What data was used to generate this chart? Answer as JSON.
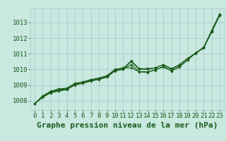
{
  "title": "Graphe pression niveau de la mer (hPa)",
  "background_color": "#c8e8e0",
  "grid_color": "#b0d0cc",
  "line_color": "#1a5c1a",
  "marker_color": "#1a5c1a",
  "xlim": [
    -0.5,
    23.5
  ],
  "ylim": [
    1007.4,
    1013.9
  ],
  "yticks": [
    1008,
    1009,
    1010,
    1011,
    1012,
    1013
  ],
  "xticks": [
    0,
    1,
    2,
    3,
    4,
    5,
    6,
    7,
    8,
    9,
    10,
    11,
    12,
    13,
    14,
    15,
    16,
    17,
    18,
    19,
    20,
    21,
    22,
    23
  ],
  "series": [
    [
      1007.8,
      1008.25,
      1008.55,
      1008.65,
      1008.75,
      1009.05,
      1009.15,
      1009.3,
      1009.4,
      1009.55,
      1009.95,
      1010.05,
      1010.55,
      1010.05,
      1010.05,
      1010.1,
      1010.3,
      1010.05,
      1010.3,
      1010.7,
      1011.05,
      1011.4,
      1012.45,
      1013.5
    ],
    [
      1007.8,
      1008.3,
      1008.6,
      1008.75,
      1008.8,
      1009.1,
      1009.2,
      1009.35,
      1009.45,
      1009.6,
      1010.0,
      1010.1,
      1010.1,
      1009.85,
      1009.8,
      1010.0,
      1010.15,
      1009.9,
      1010.15,
      1010.6,
      1011.05,
      1011.4,
      1012.5,
      1013.55
    ],
    [
      1007.8,
      1008.2,
      1008.5,
      1008.6,
      1008.7,
      1009.0,
      1009.1,
      1009.25,
      1009.35,
      1009.5,
      1009.9,
      1010.0,
      1010.5,
      1010.0,
      1010.0,
      1010.1,
      1010.3,
      1010.0,
      1010.3,
      1010.7,
      1011.0,
      1011.4,
      1012.4,
      1013.5
    ],
    [
      1007.8,
      1008.25,
      1008.55,
      1008.7,
      1008.75,
      1009.05,
      1009.15,
      1009.3,
      1009.4,
      1009.55,
      1009.95,
      1010.0,
      1010.3,
      1009.85,
      1009.85,
      1009.95,
      1010.2,
      1009.9,
      1010.2,
      1010.6,
      1011.05,
      1011.35,
      1012.4,
      1013.45
    ]
  ],
  "title_fontsize": 8,
  "tick_fontsize": 6.5,
  "title_color": "#1a5c1a",
  "tick_color": "#1a5c1a"
}
